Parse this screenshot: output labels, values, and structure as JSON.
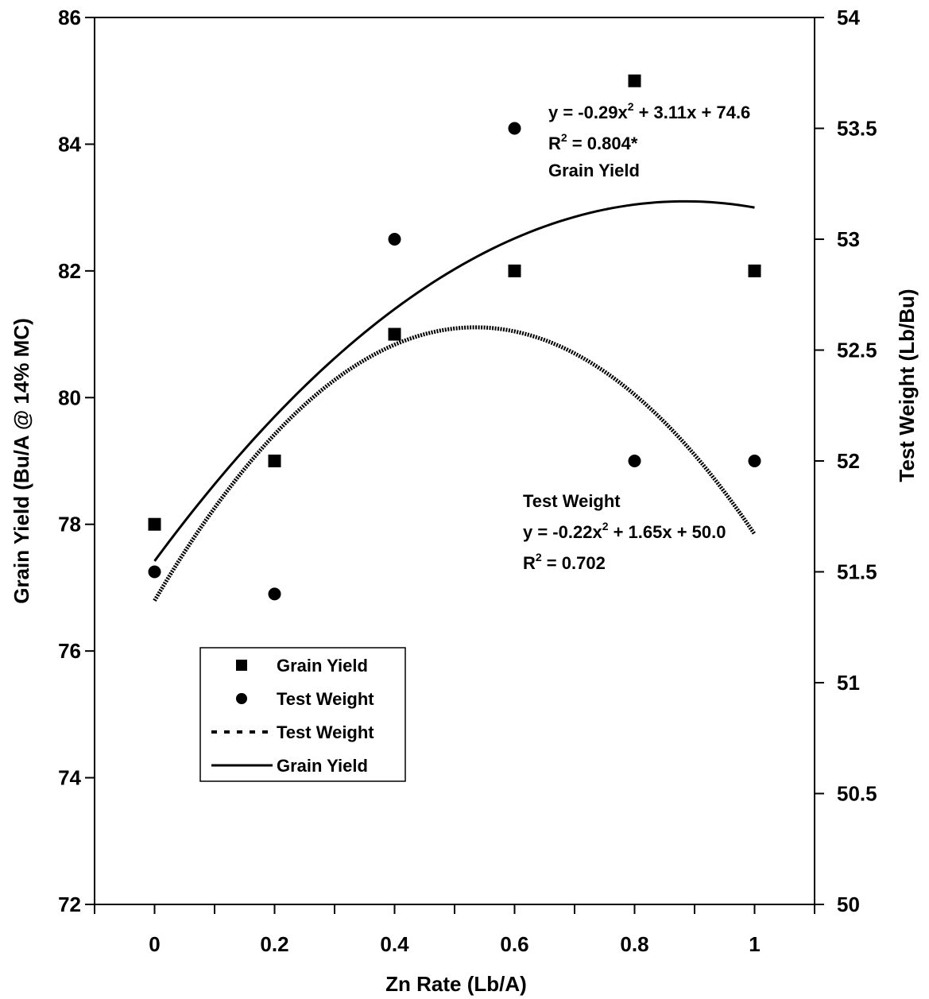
{
  "chart_data": {
    "type": "scatter",
    "xlabel": "Zn Rate (Lb/A)",
    "ylabel_left": "Grain Yield (Bu/A @ 14% MC)",
    "ylabel_right": "Test Weight (Lb/Bu)",
    "x_ticks": [
      "0",
      "0.2",
      "0.4",
      "0.6",
      "0.8",
      "1"
    ],
    "y_left_ticks": [
      "72",
      "74",
      "76",
      "78",
      "80",
      "82",
      "84",
      "86"
    ],
    "y_right_ticks": [
      "50",
      "50.5",
      "51",
      "51.5",
      "52",
      "52.5",
      "53",
      "53.5",
      "54"
    ],
    "xlim": [
      -0.1,
      1.1
    ],
    "ylim_left": [
      72,
      86
    ],
    "ylim_right": [
      50,
      54
    ],
    "grid": false,
    "legend_position": "bottom-left",
    "series": [
      {
        "name": "Grain Yield",
        "axis": "left",
        "marker": "square",
        "x": [
          0,
          0.2,
          0.4,
          0.6,
          0.8,
          1
        ],
        "values": [
          78,
          79,
          81,
          82,
          85,
          82
        ]
      },
      {
        "name": "Test Weight",
        "axis": "right",
        "marker": "circle",
        "x": [
          0,
          0.2,
          0.4,
          0.6,
          0.8,
          1
        ],
        "values": [
          51.5,
          51.4,
          53,
          53.5,
          52,
          52
        ]
      }
    ],
    "trendlines": [
      {
        "name": "Test Weight",
        "axis": "right",
        "style": "dotted",
        "coefficients": [
          51.37,
          4.61,
          -4.31
        ],
        "xrange": [
          0,
          1
        ]
      },
      {
        "name": "Grain Yield",
        "axis": "left",
        "style": "solid",
        "coefficients": [
          77.42,
          12.85,
          -7.27
        ],
        "xrange": [
          0,
          1
        ]
      }
    ],
    "annotations": {
      "grain_yield": {
        "equation_prefix": "y = -0.29x",
        "equation_sup": "2",
        "equation_suffix": " + 3.11x + 74.6",
        "r2_prefix": "R",
        "r2_sup": "2",
        "r2_suffix": " = 0.804*",
        "label": "Grain Yield"
      },
      "test_weight": {
        "label": "Test Weight",
        "equation_prefix": "y = -0.22x",
        "equation_sup": "2",
        "equation_suffix": " + 1.65x + 50.0",
        "r2_prefix": "R",
        "r2_sup": "2",
        "r2_suffix": " = 0.702"
      }
    },
    "legend": [
      {
        "label": "Grain Yield",
        "symbol": "square"
      },
      {
        "label": "Test Weight",
        "symbol": "circle"
      },
      {
        "label": "Test Weight",
        "symbol": "dotted-line"
      },
      {
        "label": "Grain Yield",
        "symbol": "solid-line"
      }
    ]
  }
}
